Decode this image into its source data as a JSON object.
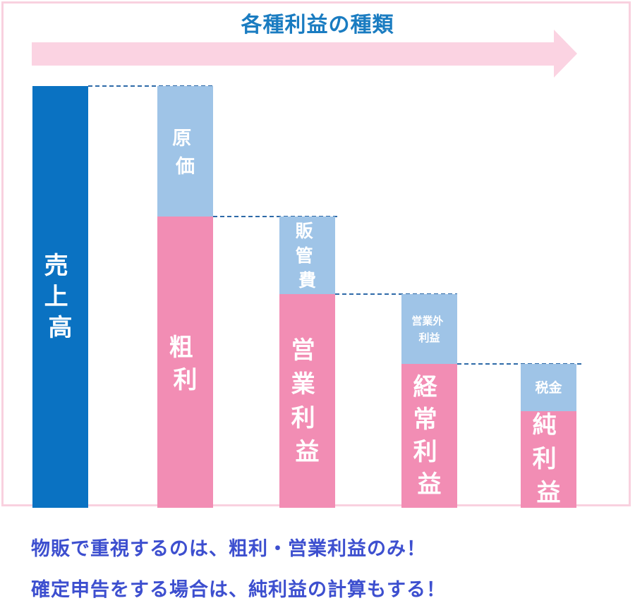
{
  "title": "各種利益の種類",
  "colors": {
    "sales": "#0a72c2",
    "cost": "#9fc4e7",
    "profit": "#f28db4",
    "arrow": "#fbd3e2",
    "frame": "#f9d1df",
    "dashed_line": "#2e6aa8",
    "note_text": "#3d4fcf",
    "title_text": "#1a7cc1"
  },
  "bars": [
    {
      "id": "sales",
      "segments": [
        {
          "label": "売上高",
          "kind": "sales"
        }
      ]
    },
    {
      "id": "gross",
      "segments": [
        {
          "label": "原価",
          "kind": "cost"
        },
        {
          "label": "粗利",
          "kind": "profit"
        }
      ]
    },
    {
      "id": "operating",
      "segments": [
        {
          "label": "販管費",
          "kind": "cost"
        },
        {
          "label": "営業利益",
          "kind": "profit"
        }
      ]
    },
    {
      "id": "ordinary",
      "segments": [
        {
          "label": "営業外利益",
          "kind": "cost"
        },
        {
          "label": "経常利益",
          "kind": "profit"
        }
      ]
    },
    {
      "id": "net",
      "segments": [
        {
          "label": "税金",
          "kind": "cost"
        },
        {
          "label": "純利益",
          "kind": "profit"
        }
      ]
    }
  ],
  "notes": [
    "物販で重視するのは、粗利・営業利益のみ！",
    "確定申告をする場合は、純利益の計算もする！"
  ]
}
